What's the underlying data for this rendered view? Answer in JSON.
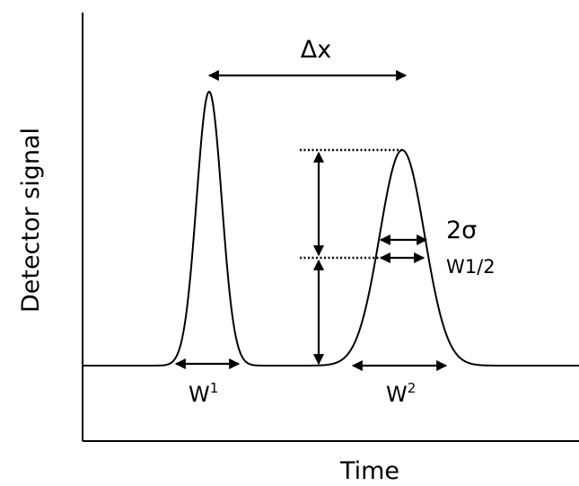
{
  "axes": {
    "x_label": "Time",
    "y_label": "Detector signal"
  },
  "annotations": {
    "delta_x": "Δx",
    "two_sigma": "2σ",
    "w_half": "W1/2",
    "w1": {
      "base": "W",
      "sup": "1"
    },
    "w2": {
      "base": "W",
      "sup": "2"
    }
  },
  "peaks": [
    {
      "name": "peak-1",
      "position": "narrow, earlier"
    },
    {
      "name": "peak-2",
      "position": "broad, later"
    }
  ]
}
